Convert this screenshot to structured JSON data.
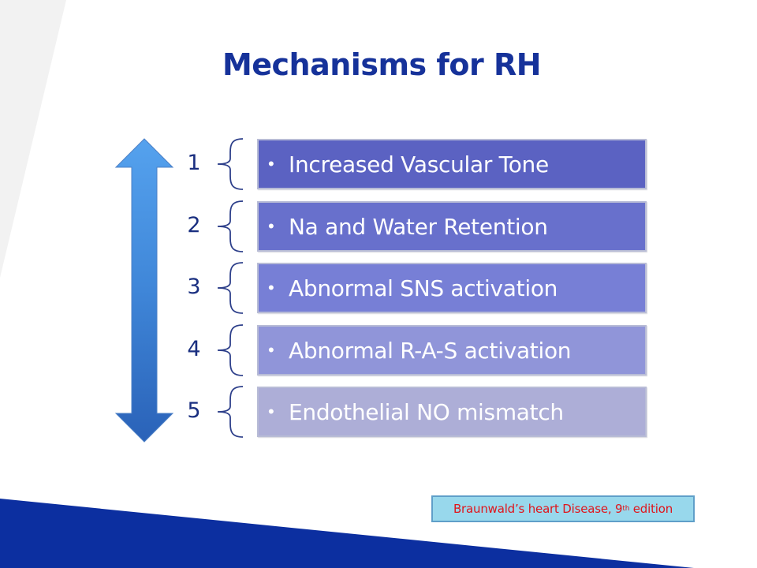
{
  "slide": {
    "title": "Mechanisms for RH",
    "mechanisms": [
      {
        "number": "1",
        "bullet": "•",
        "text": "Increased Vascular Tone",
        "color": "#5b62c2"
      },
      {
        "number": "2",
        "bullet": "•",
        "text": "Na and Water Retention",
        "color": "#6870cc"
      },
      {
        "number": "3",
        "bullet": "•",
        "text": "Abnormal SNS activation",
        "color": "#777fd6"
      },
      {
        "number": "4",
        "bullet": "•",
        "text": "Abnormal R-A-S activation",
        "color": "#9095d9"
      },
      {
        "number": "5",
        "bullet": "•",
        "text": "Endothelial NO mismatch",
        "color": "#adaed7"
      }
    ],
    "arrow_icon": "double-headed-vertical-arrow",
    "citation": {
      "text": "Braunwald’s heart Disease, 9",
      "superscript": "th",
      "suffix": " edition"
    }
  },
  "colors": {
    "title": "#16329a",
    "numbers": "#1a2f80",
    "bottom_band": "#0c2fa0",
    "citation_bg": "#98d8ec",
    "citation_text": "#e0151b"
  }
}
